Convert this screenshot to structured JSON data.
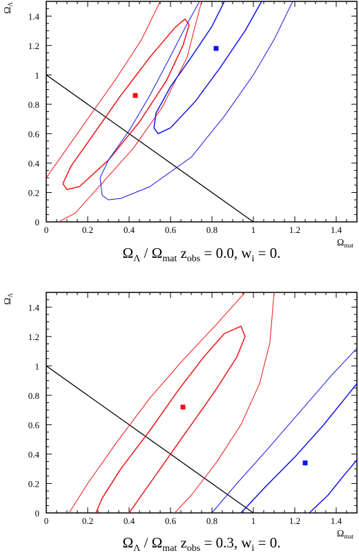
{
  "colors": {
    "red": "#ee1111",
    "blue": "#1111ee",
    "axis": "#000000"
  },
  "chart_data": [
    {
      "type": "line",
      "title_parts": {
        "lead": "Ω",
        "lead_sub": "Λ",
        "sep": " / ",
        "mid": "Ω",
        "mid_sub": "mat",
        "z": " z",
        "z_sub": "obs",
        "tail": " = 0.0, w",
        "tail_sub": "i",
        "end": " = 0."
      },
      "xlabel": {
        "main": "Ω",
        "sub": "mat"
      },
      "ylabel": {
        "main": "Ω",
        "sub": "Λ"
      },
      "xlim": [
        0,
        1.5
      ],
      "ylim": [
        0,
        1.5
      ],
      "x_ticks": [
        0,
        0.2,
        0.4,
        0.6,
        0.8,
        1,
        1.2,
        1.4
      ],
      "y_ticks": [
        0,
        0.2,
        0.4,
        0.6,
        0.8,
        1,
        1.2,
        1.4
      ],
      "flat_line": [
        [
          0,
          1
        ],
        [
          1,
          0
        ]
      ],
      "points": [
        {
          "color": "red",
          "x": 0.43,
          "y": 0.86
        },
        {
          "color": "blue",
          "x": 0.82,
          "y": 1.18
        }
      ],
      "contours": [
        {
          "color": "red",
          "width": 1.5,
          "points": [
            [
              0.08,
              0.26
            ],
            [
              0.1,
              0.22
            ],
            [
              0.16,
              0.24
            ],
            [
              0.3,
              0.42
            ],
            [
              0.45,
              0.68
            ],
            [
              0.58,
              0.96
            ],
            [
              0.66,
              1.2
            ],
            [
              0.69,
              1.34
            ],
            [
              0.67,
              1.38
            ],
            [
              0.62,
              1.32
            ],
            [
              0.5,
              1.12
            ],
            [
              0.36,
              0.86
            ],
            [
              0.22,
              0.58
            ],
            [
              0.12,
              0.38
            ],
            [
              0.08,
              0.26
            ]
          ]
        },
        {
          "color": "red",
          "width": 1,
          "points": [
            [
              0.06,
              0
            ],
            [
              0.14,
              0.06
            ],
            [
              0.28,
              0.28
            ],
            [
              0.42,
              0.5
            ],
            [
              0.56,
              0.78
            ],
            [
              0.68,
              1.12
            ],
            [
              0.75,
              1.5
            ]
          ]
        },
        {
          "color": "red",
          "width": 1,
          "points": [
            [
              0,
              0.3
            ],
            [
              0.06,
              0.42
            ],
            [
              0.2,
              0.7
            ],
            [
              0.34,
              0.98
            ],
            [
              0.46,
              1.24
            ],
            [
              0.55,
              1.5
            ]
          ]
        },
        {
          "color": "blue",
          "width": 1.5,
          "points": [
            [
              0.52,
              0.64
            ],
            [
              0.54,
              0.6
            ],
            [
              0.6,
              0.64
            ],
            [
              0.72,
              0.82
            ],
            [
              0.84,
              1.05
            ],
            [
              0.96,
              1.3
            ],
            [
              1.04,
              1.5
            ]
          ]
        },
        {
          "color": "blue",
          "width": 1.5,
          "points": [
            [
              0.52,
              0.64
            ],
            [
              0.53,
              0.74
            ],
            [
              0.6,
              0.92
            ],
            [
              0.7,
              1.12
            ],
            [
              0.8,
              1.33
            ],
            [
              0.86,
              1.5
            ]
          ]
        },
        {
          "color": "blue",
          "width": 1,
          "points": [
            [
              0.27,
              0.18
            ],
            [
              0.3,
              0.15
            ],
            [
              0.36,
              0.16
            ],
            [
              0.5,
              0.24
            ],
            [
              0.7,
              0.44
            ],
            [
              0.86,
              0.72
            ],
            [
              1.0,
              1.0
            ],
            [
              1.1,
              1.24
            ],
            [
              1.19,
              1.5
            ]
          ]
        },
        {
          "color": "blue",
          "width": 1,
          "points": [
            [
              0.27,
              0.18
            ],
            [
              0.26,
              0.3
            ],
            [
              0.3,
              0.42
            ],
            [
              0.4,
              0.62
            ],
            [
              0.5,
              0.86
            ],
            [
              0.59,
              1.1
            ],
            [
              0.67,
              1.32
            ],
            [
              0.74,
              1.5
            ]
          ]
        }
      ]
    },
    {
      "type": "line",
      "title_parts": {
        "lead": "Ω",
        "lead_sub": "Λ",
        "sep": " / ",
        "mid": "Ω",
        "mid_sub": "mat",
        "z": " z",
        "z_sub": "obs",
        "tail": " = 0.3, w",
        "tail_sub": "i",
        "end": " = 0."
      },
      "xlabel": {
        "main": "Ω",
        "sub": "mat"
      },
      "ylabel": {
        "main": "Ω",
        "sub": "Λ"
      },
      "xlim": [
        0,
        1.5
      ],
      "ylim": [
        0,
        1.5
      ],
      "x_ticks": [
        0,
        0.2,
        0.4,
        0.6,
        0.8,
        1,
        1.2,
        1.4
      ],
      "y_ticks": [
        0,
        0.2,
        0.4,
        0.6,
        0.8,
        1,
        1.2,
        1.4
      ],
      "flat_line": [
        [
          0,
          1
        ],
        [
          1,
          0
        ]
      ],
      "points": [
        {
          "color": "red",
          "x": 0.66,
          "y": 0.72
        },
        {
          "color": "blue",
          "x": 1.25,
          "y": 0.34
        }
      ],
      "contours": [
        {
          "color": "red",
          "width": 1.5,
          "points": [
            [
              0.24,
              0
            ],
            [
              0.27,
              0.1
            ],
            [
              0.36,
              0.3
            ],
            [
              0.5,
              0.56
            ],
            [
              0.64,
              0.84
            ],
            [
              0.76,
              1.06
            ],
            [
              0.86,
              1.22
            ],
            [
              0.94,
              1.27
            ],
            [
              0.96,
              1.2
            ],
            [
              0.92,
              1.06
            ],
            [
              0.82,
              0.84
            ],
            [
              0.68,
              0.56
            ],
            [
              0.54,
              0.28
            ],
            [
              0.42,
              0.04
            ],
            [
              0.4,
              0
            ]
          ]
        },
        {
          "color": "red",
          "width": 1,
          "points": [
            [
              0.11,
              0
            ],
            [
              0.2,
              0.2
            ],
            [
              0.34,
              0.48
            ],
            [
              0.5,
              0.78
            ],
            [
              0.66,
              1.04
            ],
            [
              0.82,
              1.28
            ],
            [
              0.96,
              1.5
            ]
          ]
        },
        {
          "color": "red",
          "width": 1,
          "points": [
            [
              0.62,
              0
            ],
            [
              0.7,
              0.12
            ],
            [
              0.82,
              0.34
            ],
            [
              0.94,
              0.6
            ],
            [
              1.03,
              0.88
            ],
            [
              1.08,
              1.16
            ],
            [
              1.1,
              1.5
            ]
          ]
        },
        {
          "color": "blue",
          "width": 1,
          "points": [
            [
              0.8,
              0
            ],
            [
              0.92,
              0.2
            ],
            [
              1.06,
              0.42
            ],
            [
              1.22,
              0.68
            ],
            [
              1.38,
              0.94
            ],
            [
              1.5,
              1.12
            ]
          ]
        },
        {
          "color": "blue",
          "width": 1.5,
          "points": [
            [
              0.94,
              0
            ],
            [
              1.06,
              0.18
            ],
            [
              1.2,
              0.38
            ],
            [
              1.34,
              0.6
            ],
            [
              1.5,
              0.88
            ]
          ]
        },
        {
          "color": "blue",
          "width": 1.5,
          "points": [
            [
              1.27,
              0
            ],
            [
              1.36,
              0.12
            ],
            [
              1.44,
              0.26
            ],
            [
              1.5,
              0.36
            ]
          ]
        }
      ]
    }
  ]
}
